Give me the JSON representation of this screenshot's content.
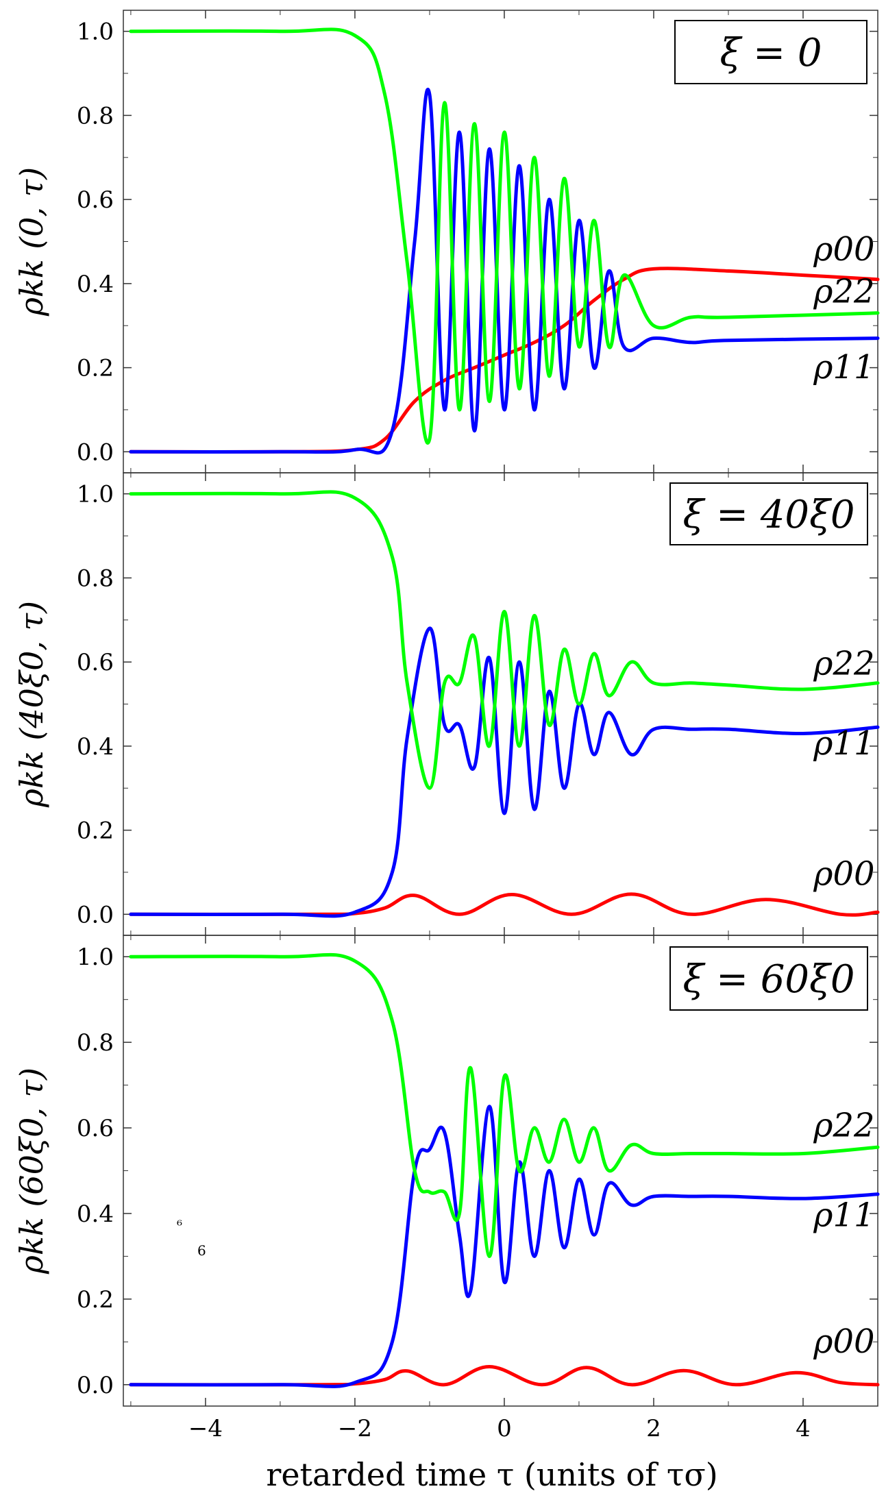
{
  "xlabel": "retarded time τ (units of τσ)",
  "x_ticks": [
    "−4",
    "−2",
    "0",
    "2",
    "4"
  ],
  "y_ticks": [
    "0.0",
    "0.2",
    "0.4",
    "0.6",
    "0.8",
    "1.0"
  ],
  "colors": {
    "rho00": "#ff0000",
    "rho11": "#0000ff",
    "rho22": "#00ff00",
    "frame": "#333333"
  },
  "stray_marks": [
    "⁶",
    "6"
  ],
  "chart_data": [
    {
      "type": "line",
      "title": "ξ = 0",
      "ylabel": "ρkk (0, τ)",
      "xlim": [
        -5.1,
        5.0
      ],
      "ylim": [
        -0.05,
        1.05
      ],
      "series": [
        {
          "name": "ρ00",
          "key": "rho00",
          "x": [
            -5,
            -3,
            -2,
            -1.6,
            -1.2,
            -0.8,
            -0.4,
            0,
            0.4,
            0.8,
            1.2,
            1.6,
            2,
            3,
            4,
            5
          ],
          "values": [
            0,
            0,
            0.005,
            0.03,
            0.12,
            0.17,
            0.2,
            0.23,
            0.26,
            0.3,
            0.36,
            0.41,
            0.435,
            0.43,
            0.42,
            0.41
          ]
        },
        {
          "name": "ρ11",
          "key": "rho11",
          "x": [
            -5,
            -3,
            -2,
            -1.5,
            -1.2,
            -1.0,
            -0.8,
            -0.6,
            -0.4,
            -0.2,
            0,
            0.2,
            0.4,
            0.6,
            0.8,
            1.0,
            1.2,
            1.4,
            1.6,
            2,
            2.5,
            3,
            5
          ],
          "values": [
            0,
            0,
            0.005,
            0.05,
            0.5,
            0.85,
            0.1,
            0.76,
            0.05,
            0.72,
            0.1,
            0.68,
            0.1,
            0.6,
            0.15,
            0.55,
            0.2,
            0.43,
            0.25,
            0.27,
            0.26,
            0.265,
            0.27
          ]
        },
        {
          "name": "ρ22",
          "key": "rho22",
          "x": [
            -5,
            -3,
            -2,
            -1.6,
            -1.3,
            -1.0,
            -0.8,
            -0.6,
            -0.4,
            -0.2,
            0,
            0.2,
            0.4,
            0.6,
            0.8,
            1.0,
            1.2,
            1.4,
            1.6,
            2,
            2.5,
            3,
            5
          ],
          "values": [
            1,
            1,
            0.99,
            0.85,
            0.45,
            0.03,
            0.83,
            0.1,
            0.78,
            0.12,
            0.76,
            0.15,
            0.7,
            0.18,
            0.65,
            0.25,
            0.55,
            0.25,
            0.42,
            0.3,
            0.32,
            0.32,
            0.33
          ]
        }
      ],
      "legend": "top-right",
      "curve_labels": [
        {
          "key": "rho00",
          "text": "ρ00",
          "at": [
            4.55,
            0.455
          ]
        },
        {
          "key": "rho22",
          "text": "ρ22",
          "at": [
            4.55,
            0.355
          ]
        },
        {
          "key": "rho11",
          "text": "ρ11",
          "at": [
            4.55,
            0.175
          ]
        }
      ]
    },
    {
      "type": "line",
      "title": "ξ = 40ξ0",
      "ylabel": "ρkk (40ξ0, τ)",
      "xlim": [
        -5.1,
        5.0
      ],
      "ylim": [
        -0.05,
        1.05
      ],
      "series": [
        {
          "name": "ρ00",
          "key": "rho00",
          "x": [
            -5,
            -2.5,
            -2,
            -1.6,
            -1.2,
            -0.6,
            0.1,
            0.9,
            1.7,
            2.5,
            3.5,
            4.5,
            5
          ],
          "values": [
            0,
            0,
            0.002,
            0.015,
            0.045,
            0.0,
            0.047,
            0.0,
            0.048,
            0.0,
            0.035,
            0.0,
            0.005
          ]
        },
        {
          "name": "ρ11",
          "key": "rho11",
          "x": [
            -5,
            -3,
            -2,
            -1.5,
            -1.3,
            -1.0,
            -0.8,
            -0.6,
            -0.4,
            -0.2,
            0,
            0.2,
            0.4,
            0.6,
            0.8,
            1.0,
            1.2,
            1.4,
            1.7,
            2.0,
            2.5,
            3,
            4,
            5
          ],
          "values": [
            0,
            0,
            0.005,
            0.1,
            0.42,
            0.68,
            0.45,
            0.45,
            0.35,
            0.61,
            0.24,
            0.6,
            0.25,
            0.53,
            0.3,
            0.5,
            0.38,
            0.48,
            0.38,
            0.44,
            0.44,
            0.44,
            0.43,
            0.445
          ]
        },
        {
          "name": "ρ22",
          "key": "rho22",
          "x": [
            -5,
            -3,
            -2,
            -1.5,
            -1.3,
            -1.0,
            -0.8,
            -0.6,
            -0.4,
            -0.2,
            0,
            0.2,
            0.4,
            0.6,
            0.8,
            1.0,
            1.2,
            1.4,
            1.7,
            2.0,
            2.5,
            3,
            4,
            5
          ],
          "values": [
            1,
            1,
            0.99,
            0.85,
            0.55,
            0.3,
            0.55,
            0.55,
            0.66,
            0.4,
            0.72,
            0.4,
            0.71,
            0.45,
            0.63,
            0.5,
            0.62,
            0.52,
            0.6,
            0.55,
            0.55,
            0.545,
            0.535,
            0.55
          ]
        }
      ],
      "legend": "top-right",
      "curve_labels": [
        {
          "key": "rho22",
          "text": "ρ22",
          "at": [
            4.55,
            0.57
          ]
        },
        {
          "key": "rho11",
          "text": "ρ11",
          "at": [
            4.55,
            0.38
          ]
        },
        {
          "key": "rho00",
          "text": "ρ00",
          "at": [
            4.55,
            0.07
          ]
        }
      ]
    },
    {
      "type": "line",
      "title": "ξ = 60ξ0",
      "ylabel": "ρkk (60ξ0, τ)",
      "xlim": [
        -5.1,
        5.0
      ],
      "ylim": [
        -0.05,
        1.05
      ],
      "series": [
        {
          "name": "ρ00",
          "key": "rho00",
          "x": [
            -5,
            -2.5,
            -2,
            -1.6,
            -1.3,
            -0.8,
            -0.2,
            0.5,
            1.1,
            1.7,
            2.4,
            3.1,
            3.9,
            4.5,
            5
          ],
          "values": [
            0,
            0,
            0.002,
            0.012,
            0.032,
            0.0,
            0.042,
            0.0,
            0.04,
            0.0,
            0.033,
            0.0,
            0.028,
            0.005,
            0.0
          ]
        },
        {
          "name": "ρ11",
          "key": "rho11",
          "x": [
            -5,
            -3,
            -2,
            -1.5,
            -1.2,
            -1.0,
            -0.8,
            -0.6,
            -0.45,
            -0.2,
            0,
            0.2,
            0.4,
            0.6,
            0.8,
            1.0,
            1.2,
            1.4,
            1.7,
            2.0,
            2.5,
            3,
            4,
            5
          ],
          "values": [
            0,
            0,
            0.005,
            0.1,
            0.5,
            0.55,
            0.59,
            0.35,
            0.22,
            0.65,
            0.24,
            0.52,
            0.3,
            0.5,
            0.32,
            0.48,
            0.35,
            0.47,
            0.42,
            0.44,
            0.44,
            0.44,
            0.435,
            0.445
          ]
        },
        {
          "name": "ρ22",
          "key": "rho22",
          "x": [
            -5,
            -3,
            -2,
            -1.5,
            -1.2,
            -1.0,
            -0.8,
            -0.6,
            -0.45,
            -0.2,
            0,
            0.2,
            0.4,
            0.6,
            0.8,
            1.0,
            1.2,
            1.4,
            1.7,
            2.0,
            2.5,
            3,
            4,
            5
          ],
          "values": [
            1,
            1,
            0.99,
            0.85,
            0.5,
            0.45,
            0.45,
            0.4,
            0.74,
            0.3,
            0.72,
            0.5,
            0.6,
            0.52,
            0.62,
            0.52,
            0.6,
            0.5,
            0.56,
            0.54,
            0.54,
            0.54,
            0.54,
            0.555
          ]
        }
      ],
      "legend": "top-right",
      "curve_labels": [
        {
          "key": "rho22",
          "text": "ρ22",
          "at": [
            4.55,
            0.58
          ]
        },
        {
          "key": "rho11",
          "text": "ρ11",
          "at": [
            4.55,
            0.37
          ]
        },
        {
          "key": "rho00",
          "text": "ρ00",
          "at": [
            4.55,
            0.075
          ]
        }
      ]
    }
  ]
}
